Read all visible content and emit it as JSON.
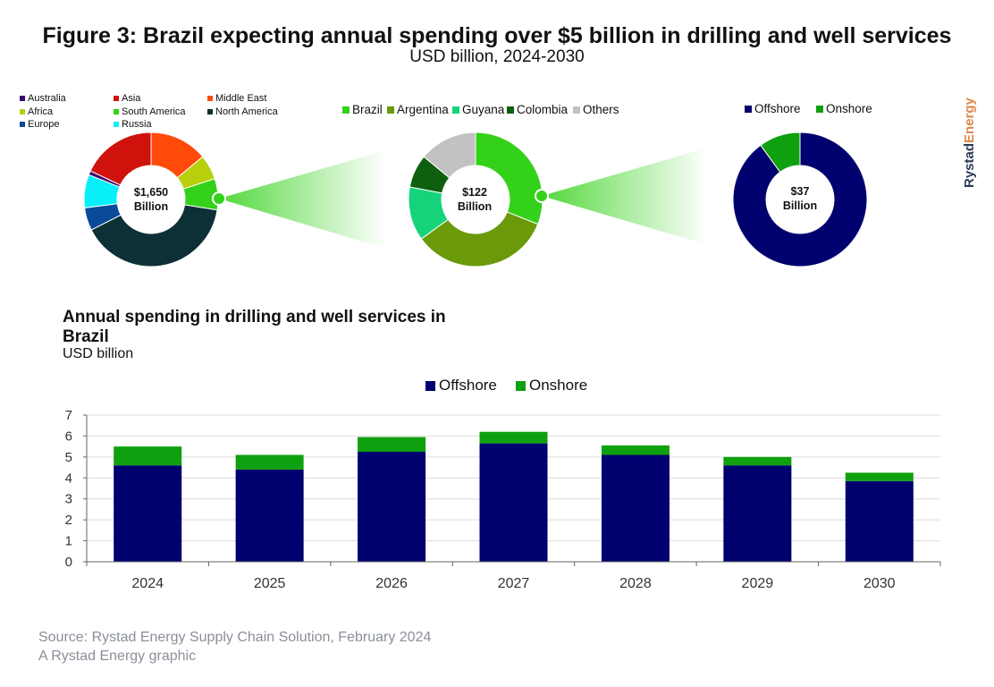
{
  "header": {
    "title": "Figure 3: Brazil expecting annual spending over $5 billion in drilling and well services",
    "subtitle": "USD billion, 2024-2030"
  },
  "brand": {
    "name_part1": "Rystad",
    "name_part2": "Energy",
    "color1": "#2b3a55",
    "color2": "#e0894a"
  },
  "donuts": [
    {
      "center_value": "$1,650",
      "center_unit": "Billion",
      "legend": [
        {
          "label": "Australia",
          "color": "#3b0a6e"
        },
        {
          "label": "Asia",
          "color": "#d0120c"
        },
        {
          "label": "Middle East",
          "color": "#ff4a0a"
        },
        {
          "label": "Africa",
          "color": "#b8d00c"
        },
        {
          "label": "South America",
          "color": "#33d119"
        },
        {
          "label": "North America",
          "color": "#0d3036"
        },
        {
          "label": "Europe",
          "color": "#0a4a99"
        },
        {
          "label": "Russia",
          "color": "#07f0f7"
        }
      ],
      "slices": [
        {
          "label": "Middle East",
          "value": 14
        },
        {
          "label": "Africa",
          "value": 6
        },
        {
          "label": "South America",
          "value": 7.5
        },
        {
          "label": "North America",
          "value": 40
        },
        {
          "label": "Europe",
          "value": 5.5
        },
        {
          "label": "Russia",
          "value": 8
        },
        {
          "label": "Australia",
          "value": 1
        },
        {
          "label": "Asia",
          "value": 18
        }
      ]
    },
    {
      "center_value": "$122",
      "center_unit": "Billion",
      "legend": [
        {
          "label": "Brazil",
          "color": "#33d119"
        },
        {
          "label": "Argentina",
          "color": "#6a9a0a"
        },
        {
          "label": "Guyana",
          "color": "#16d37a"
        },
        {
          "label": "Colombia",
          "color": "#0f5f10"
        },
        {
          "label": "Others",
          "color": "#c2c2c2"
        }
      ],
      "slices": [
        {
          "label": "Brazil",
          "value": 31
        },
        {
          "label": "Argentina",
          "value": 34
        },
        {
          "label": "Guyana",
          "value": 13
        },
        {
          "label": "Colombia",
          "value": 8
        },
        {
          "label": "Others",
          "value": 14
        }
      ]
    },
    {
      "center_value": "$37",
      "center_unit": "Billion",
      "legend": [
        {
          "label": "Offshore",
          "color": "#00006e"
        },
        {
          "label": "Onshore",
          "color": "#0fa00f"
        }
      ],
      "slices": [
        {
          "label": "Offshore",
          "value": 90
        },
        {
          "label": "Onshore",
          "value": 10
        }
      ]
    }
  ],
  "bar_chart": {
    "title": "Annual spending in drilling and well services in Brazil",
    "subtitle": "USD billion"
  },
  "chart_data": {
    "type": "bar",
    "stacked": true,
    "categories": [
      "2024",
      "2025",
      "2026",
      "2027",
      "2028",
      "2029",
      "2030"
    ],
    "series": [
      {
        "name": "Offshore",
        "color": "#00006e",
        "values": [
          4.6,
          4.4,
          5.25,
          5.65,
          5.1,
          4.6,
          3.85
        ]
      },
      {
        "name": "Onshore",
        "color": "#0fa00f",
        "values": [
          0.9,
          0.7,
          0.7,
          0.55,
          0.45,
          0.4,
          0.4
        ]
      }
    ],
    "ylim": [
      0,
      7
    ],
    "yticks": [
      "0",
      "1",
      "2",
      "3",
      "4",
      "5",
      "6",
      "7"
    ],
    "grid": true,
    "legend_position": "top-center"
  },
  "footer": {
    "source": "Source: Rystad Energy Supply Chain Solution, February 2024",
    "credit": "A Rystad Energy graphic"
  }
}
